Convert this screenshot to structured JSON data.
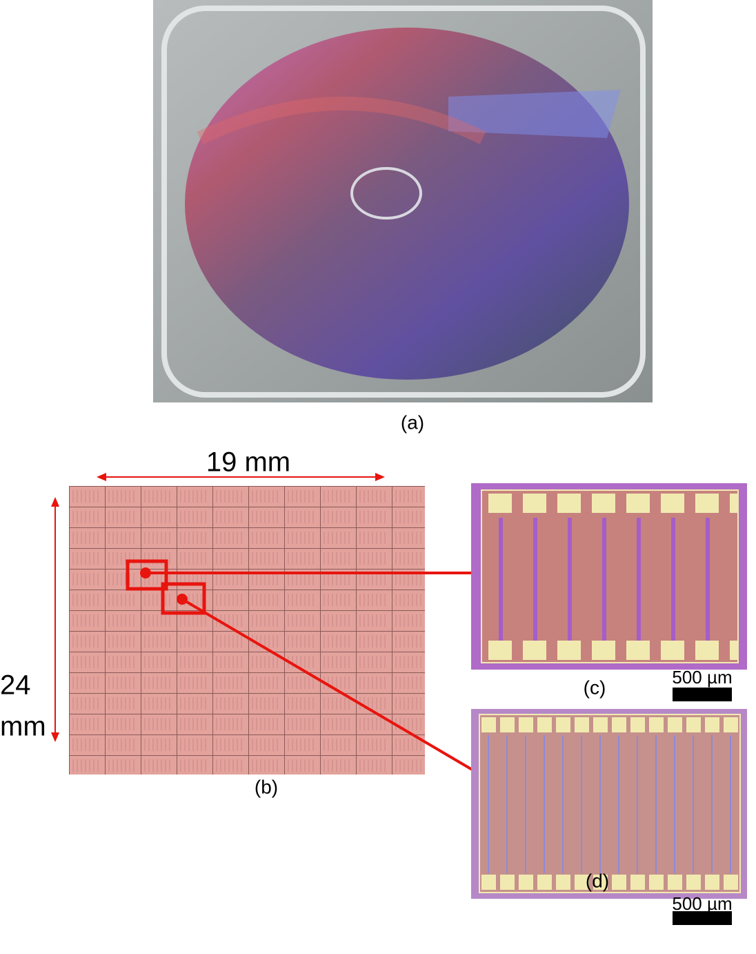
{
  "panels": {
    "a": {
      "label": "(a)"
    },
    "b": {
      "label": "(b)",
      "width_label": "19 mm",
      "height_label": [
        "24",
        "mm"
      ]
    },
    "c": {
      "label": "(c)",
      "scale_bar": "500 µm"
    },
    "d": {
      "label": "(d)",
      "scale_bar": "500 µm"
    }
  }
}
